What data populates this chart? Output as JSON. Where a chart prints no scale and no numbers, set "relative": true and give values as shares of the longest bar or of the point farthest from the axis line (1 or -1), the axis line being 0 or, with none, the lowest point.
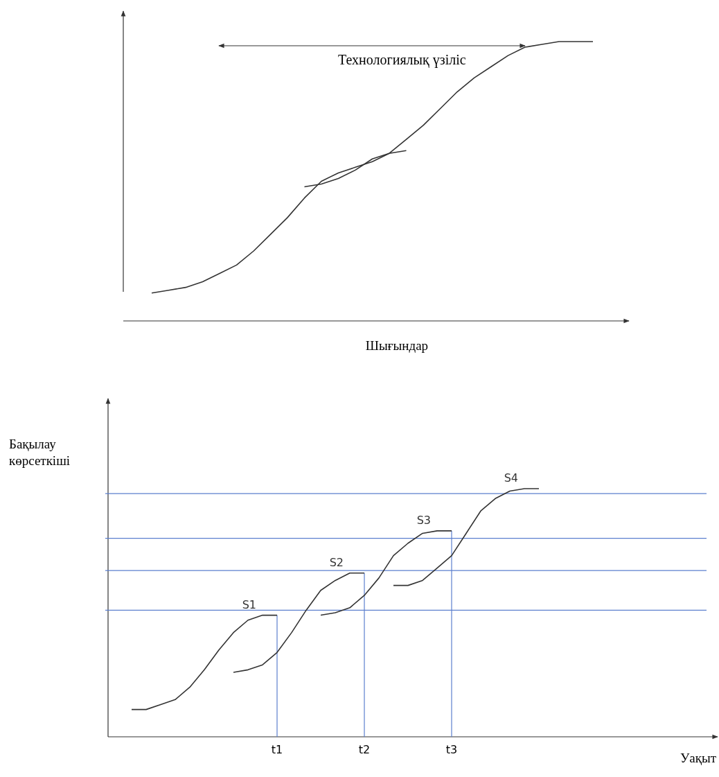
{
  "chart_data": [
    {
      "type": "line",
      "relative": true,
      "xlabel": "Шығындар",
      "annotations": [
        "Технологиялық үзіліс"
      ],
      "categories": [
        null,
        null,
        null,
        null,
        null,
        null,
        null,
        null,
        null,
        null,
        null,
        null,
        null,
        null,
        null,
        null,
        null,
        null,
        null,
        null,
        null,
        null,
        null,
        null,
        null,
        null,
        null,
        null,
        null,
        null,
        null
      ],
      "series": [
        {
          "color": "#333333",
          "values": [
            null,
            null,
            0.1,
            0.11,
            0.12,
            0.14,
            0.17,
            0.2,
            0.25,
            0.31,
            0.37,
            0.44,
            0.5,
            0.53,
            0.55,
            0.57,
            0.6,
            0.65,
            0.7,
            0.76,
            0.82,
            0.87,
            0.91,
            0.95,
            0.98,
            0.99,
            1.0,
            1.0,
            1.0,
            null,
            null
          ]
        },
        {
          "color": "#333333",
          "values": [
            null,
            null,
            null,
            null,
            null,
            null,
            null,
            null,
            null,
            null,
            null,
            0.48,
            0.49,
            0.51,
            0.54,
            0.58,
            0.6,
            0.61,
            null,
            null,
            null,
            null,
            null,
            null,
            null,
            null,
            null,
            null,
            null,
            null,
            null
          ]
        }
      ]
    },
    {
      "type": "line",
      "relative": true,
      "xlabel": "Уақыт",
      "ylabel": "Бақылау көрсеткіші",
      "categories": [
        null,
        null,
        null,
        null,
        null,
        null,
        null,
        null,
        null,
        null,
        null,
        null,
        "t1",
        null,
        null,
        null,
        null,
        null,
        "t2",
        null,
        null,
        null,
        null,
        null,
        "t3",
        null,
        null,
        null,
        null,
        null,
        null,
        null,
        null,
        null,
        null,
        null,
        null,
        null,
        null,
        null,
        null,
        null,
        null
      ],
      "series": [
        {
          "name": "S1",
          "color": "#333333",
          "values": [
            null,
            null,
            0.11,
            0.11,
            0.13,
            0.15,
            0.2,
            0.27,
            0.35,
            0.42,
            0.47,
            0.49,
            0.49,
            null,
            null,
            null,
            null,
            null,
            null,
            null,
            null,
            null,
            null,
            null,
            null,
            null,
            null,
            null,
            null,
            null,
            null,
            null,
            null,
            null,
            null,
            null,
            null,
            null,
            null,
            null,
            null,
            null,
            null
          ]
        },
        {
          "name": "S2",
          "color": "#333333",
          "values": [
            null,
            null,
            null,
            null,
            null,
            null,
            null,
            null,
            null,
            0.26,
            0.27,
            0.29,
            0.34,
            0.42,
            0.51,
            0.59,
            0.63,
            0.66,
            0.66,
            null,
            null,
            null,
            null,
            null,
            null,
            null,
            null,
            null,
            null,
            null,
            null,
            null,
            null,
            null,
            null,
            null,
            null,
            null,
            null,
            null,
            null,
            null,
            null
          ]
        },
        {
          "name": "S3",
          "color": "#333333",
          "values": [
            null,
            null,
            null,
            null,
            null,
            null,
            null,
            null,
            null,
            null,
            null,
            null,
            null,
            null,
            null,
            0.49,
            0.5,
            0.52,
            0.57,
            0.64,
            0.73,
            0.78,
            0.82,
            0.83,
            0.83,
            null,
            null,
            null,
            null,
            null,
            null,
            null,
            null,
            null,
            null,
            null,
            null,
            null,
            null,
            null,
            null,
            null,
            null
          ]
        },
        {
          "name": "S4",
          "color": "#333333",
          "values": [
            null,
            null,
            null,
            null,
            null,
            null,
            null,
            null,
            null,
            null,
            null,
            null,
            null,
            null,
            null,
            null,
            null,
            null,
            null,
            null,
            0.61,
            0.61,
            0.63,
            0.68,
            0.73,
            0.82,
            0.91,
            0.96,
            0.99,
            1.0,
            1.0,
            null,
            null,
            null,
            null,
            null,
            null,
            null,
            null,
            null,
            null,
            null,
            null
          ]
        }
      ],
      "ref_lines": [
        {
          "axis": "y",
          "value": 0.98,
          "color": "#5b7fce"
        },
        {
          "axis": "y",
          "value": 0.8,
          "color": "#5b7fce"
        },
        {
          "axis": "y",
          "value": 0.67,
          "color": "#5b7fce"
        },
        {
          "axis": "y",
          "value": 0.51,
          "color": "#5b7fce"
        },
        {
          "axis": "x",
          "value": "t1",
          "color": "#5b7fce"
        },
        {
          "axis": "x",
          "value": "t2",
          "color": "#5b7fce"
        },
        {
          "axis": "x",
          "value": "t3",
          "color": "#5b7fce"
        }
      ]
    }
  ]
}
